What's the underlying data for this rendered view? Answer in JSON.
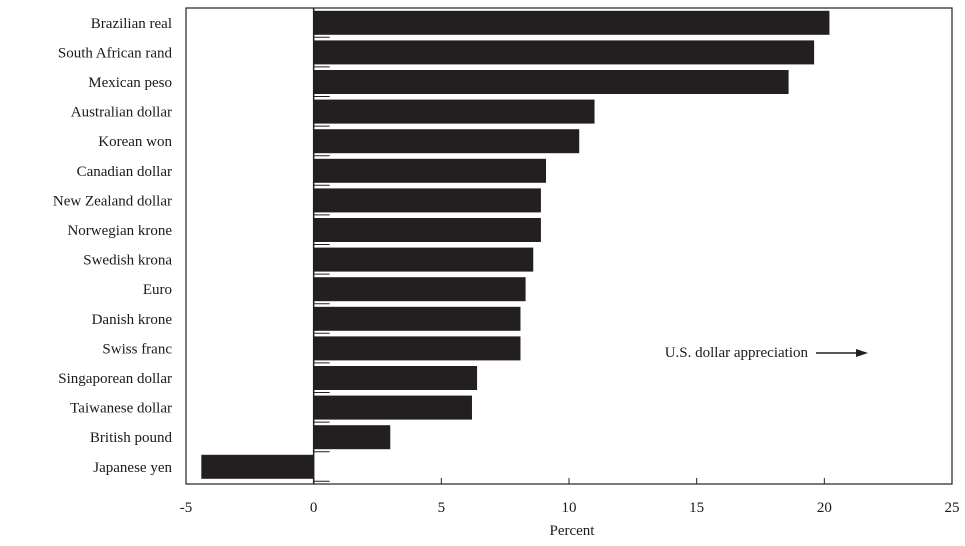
{
  "chart_data": {
    "type": "bar",
    "orientation": "horizontal",
    "categories": [
      "Brazilian real",
      "South African rand",
      "Mexican peso",
      "Australian dollar",
      "Korean won",
      "Canadian dollar",
      "New Zealand dollar",
      "Norwegian krone",
      "Swedish krona",
      "Euro",
      "Danish krone",
      "Swiss franc",
      "Singaporean dollar",
      "Taiwanese dollar",
      "British pound",
      "Japanese yen"
    ],
    "values": [
      20.2,
      19.6,
      18.6,
      11.0,
      10.4,
      9.1,
      8.9,
      8.9,
      8.6,
      8.3,
      8.1,
      8.1,
      6.4,
      6.2,
      3.0,
      -4.4
    ],
    "title": "",
    "xlabel": "Percent",
    "ylabel": "",
    "xlim": [
      -5,
      25
    ],
    "xticks": [
      -5,
      0,
      5,
      10,
      15,
      20,
      25
    ],
    "xtick_labels": [
      "-5",
      "0",
      "5",
      "10",
      "15",
      "20",
      "25"
    ],
    "grid": false,
    "annotation": "U.S. dollar appreciation",
    "colors": {
      "bar": "#231f20",
      "axis": "#231f20"
    }
  }
}
